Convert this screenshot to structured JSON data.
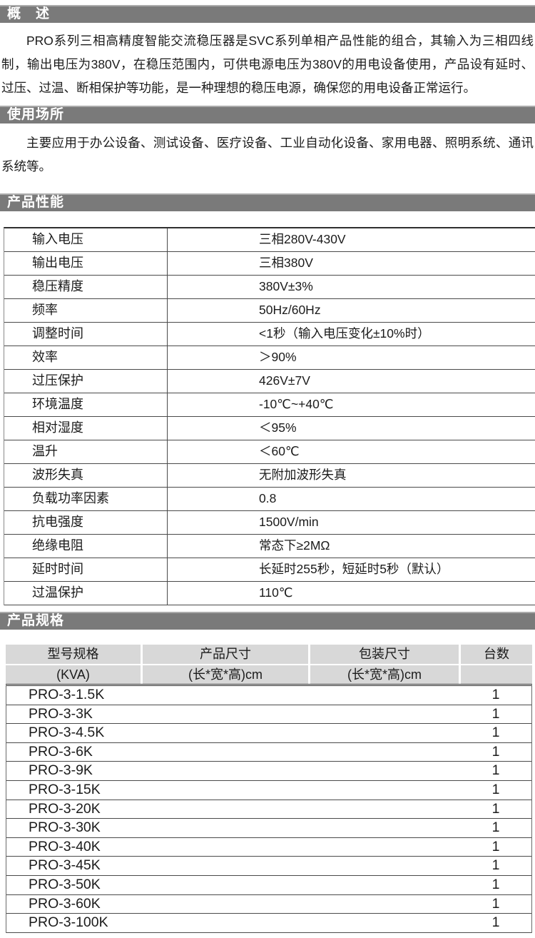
{
  "sections": {
    "overview": {
      "title": "概　述",
      "body": "PRO系列三相高精度智能交流稳压器是SVC系列单相产品性能的组合，其输入为三相四线制，输出电压为380V，在稳压范围内，可供电源电压为380V的用电设备使用，产品设有延时、过压、过温、断相保护等功能，是一种理想的稳压电源，确保您的用电设备正常运行。"
    },
    "usage": {
      "title": "使用场所",
      "body": "主要应用于办公设备、测试设备、医疗设备、工业自动化设备、家用电器、照明系统、通讯系统等。"
    },
    "performance": {
      "title": "产品性能",
      "rows": [
        {
          "label": "输入电压",
          "value": "三相280V-430V"
        },
        {
          "label": "输出电压",
          "value": "三相380V"
        },
        {
          "label": "稳压精度",
          "value": "380V±3%"
        },
        {
          "label": "频率",
          "value": "50Hz/60Hz"
        },
        {
          "label": "调整时间",
          "value": "<1秒（输入电压变化±10%时）"
        },
        {
          "label": "效率",
          "value": "＞90%"
        },
        {
          "label": "过压保护",
          "value": "426V±7V"
        },
        {
          "label": "环境温度",
          "value": "-10℃~+40℃"
        },
        {
          "label": "相对湿度",
          "value": "＜95%"
        },
        {
          "label": "温升",
          "value": "＜60℃"
        },
        {
          "label": "波形失真",
          "value": "无附加波形失真"
        },
        {
          "label": "负载功率因素",
          "value": "0.8"
        },
        {
          "label": "抗电强度",
          "value": "1500V/min"
        },
        {
          "label": "绝缘电阻",
          "value": "常态下≥2MΩ"
        },
        {
          "label": "延时时间",
          "value": "长延时255秒，短延时5秒（默认）"
        },
        {
          "label": "过温保护",
          "value": "110℃"
        }
      ]
    },
    "specs": {
      "title": "产品规格",
      "header": {
        "col1_line1": "型号规格",
        "col1_line2": "(KVA)",
        "col2_line1": "产品尺寸",
        "col2_line2": "(长*宽*高)cm",
        "col3_line1": "包装尺寸",
        "col3_line2": "(长*宽*高)cm",
        "col4_line1": "台数",
        "col4_line2": ""
      },
      "rows": [
        {
          "model": "PRO-3-1.5K",
          "product_size": "",
          "package_size": "",
          "qty": "1"
        },
        {
          "model": "PRO-3-3K",
          "product_size": "",
          "package_size": "",
          "qty": "1"
        },
        {
          "model": "PRO-3-4.5K",
          "product_size": "",
          "package_size": "",
          "qty": "1"
        },
        {
          "model": "PRO-3-6K",
          "product_size": "",
          "package_size": "",
          "qty": "1"
        },
        {
          "model": "PRO-3-9K",
          "product_size": "",
          "package_size": "",
          "qty": "1"
        },
        {
          "model": "PRO-3-15K",
          "product_size": "",
          "package_size": "",
          "qty": "1"
        },
        {
          "model": "PRO-3-20K",
          "product_size": "",
          "package_size": "",
          "qty": "1"
        },
        {
          "model": "PRO-3-30K",
          "product_size": "",
          "package_size": "",
          "qty": "1"
        },
        {
          "model": "PRO-3-40K",
          "product_size": "",
          "package_size": "",
          "qty": "1"
        },
        {
          "model": "PRO-3-45K",
          "product_size": "",
          "package_size": "",
          "qty": "1"
        },
        {
          "model": "PRO-3-50K",
          "product_size": "",
          "package_size": "",
          "qty": "1"
        },
        {
          "model": "PRO-3-60K",
          "product_size": "",
          "package_size": "",
          "qty": "1"
        },
        {
          "model": "PRO-3-100K",
          "product_size": "",
          "package_size": "",
          "qty": "1"
        }
      ]
    }
  },
  "colors": {
    "section_bar_bg": "#7a7a7a",
    "section_bar_text": "#ffffff",
    "table_header_bg": "#d8d8d8",
    "table_line": "#4a4a4a",
    "body_text": "#1b1b1b"
  }
}
